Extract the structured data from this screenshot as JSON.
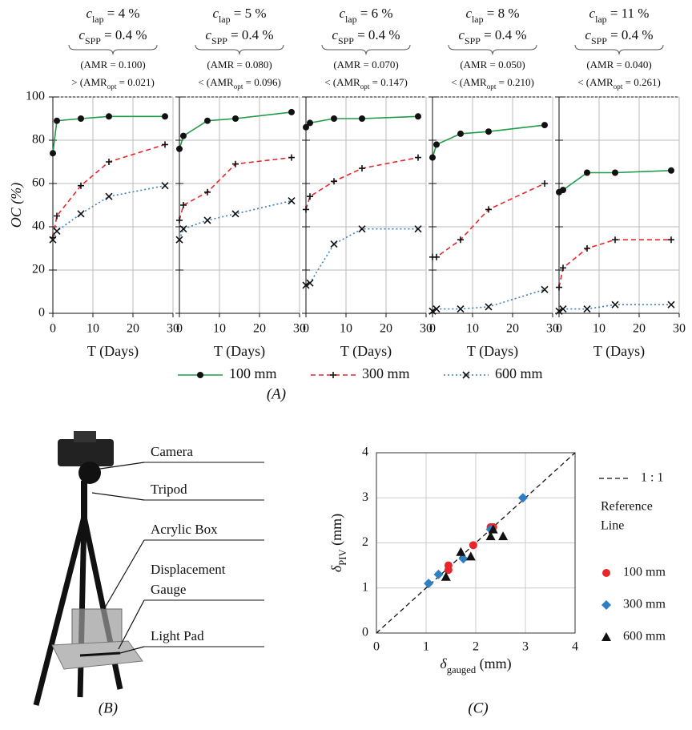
{
  "chart_data": [
    {
      "type": "line",
      "annotations": [
        [
          "c",
          "lap",
          " = 4 %"
        ],
        [
          "c",
          "SPP",
          " = 0.4 %"
        ],
        [
          "(AMR = 0.100)"
        ],
        [
          "> (AMR",
          "opt",
          " = 0.021)"
        ]
      ],
      "x": [
        0,
        1,
        7,
        14,
        28
      ],
      "xlabel": "T (Days)",
      "ylabel": "OC (%)",
      "xlim": [
        0,
        30
      ],
      "xticks": [
        0,
        10,
        20,
        30
      ],
      "ylim": [
        0,
        100
      ],
      "yticks": [
        0,
        20,
        40,
        60,
        80,
        100
      ],
      "grid": true,
      "series": [
        {
          "name": "100 mm",
          "color": "#1e9b48",
          "marker": "circle",
          "line_style": "solid",
          "values": [
            74,
            89,
            90,
            91,
            91
          ]
        },
        {
          "name": "300 mm",
          "color": "#e8262b",
          "marker": "plus",
          "line_style": "dashed",
          "values": [
            35,
            45,
            59,
            70,
            78
          ]
        },
        {
          "name": "600 mm",
          "color": "#3a7fc1",
          "marker": "cross",
          "line_style": "dotted",
          "values": [
            34,
            38,
            46,
            54,
            59
          ]
        }
      ]
    },
    {
      "type": "line",
      "annotations": [
        [
          "c",
          "lap",
          " = 5 %"
        ],
        [
          "c",
          "SPP",
          " = 0.4 %"
        ],
        [
          "(AMR = 0.080)"
        ],
        [
          "< (AMR",
          "opt",
          " = 0.096)"
        ]
      ],
      "x": [
        0,
        1,
        7,
        14,
        28
      ],
      "xlabel": "T (Days)",
      "xlim": [
        0,
        30
      ],
      "xticks": [
        0,
        10,
        20,
        30
      ],
      "ylim": [
        0,
        100
      ],
      "yticks": [
        0,
        20,
        40,
        60,
        80,
        100
      ],
      "grid": true,
      "series": [
        {
          "name": "100 mm",
          "color": "#1e9b48",
          "marker": "circle",
          "line_style": "solid",
          "values": [
            76,
            82,
            89,
            90,
            93
          ]
        },
        {
          "name": "300 mm",
          "color": "#e8262b",
          "marker": "plus",
          "line_style": "dashed",
          "values": [
            43,
            50,
            56,
            69,
            72
          ]
        },
        {
          "name": "600 mm",
          "color": "#3a7fc1",
          "marker": "cross",
          "line_style": "dotted",
          "values": [
            34,
            39,
            43,
            46,
            52
          ]
        }
      ]
    },
    {
      "type": "line",
      "annotations": [
        [
          "c",
          "lap",
          " = 6 %"
        ],
        [
          "c",
          "SPP",
          " = 0.4 %"
        ],
        [
          "(AMR = 0.070)"
        ],
        [
          "< (AMR",
          "opt",
          " = 0.147)"
        ]
      ],
      "x": [
        0,
        1,
        7,
        14,
        28
      ],
      "xlabel": "T (Days)",
      "xlim": [
        0,
        30
      ],
      "xticks": [
        0,
        10,
        20,
        30
      ],
      "ylim": [
        0,
        100
      ],
      "yticks": [
        0,
        20,
        40,
        60,
        80,
        100
      ],
      "grid": true,
      "series": [
        {
          "name": "100 mm",
          "color": "#1e9b48",
          "marker": "circle",
          "line_style": "solid",
          "values": [
            86,
            88,
            90,
            90,
            91
          ]
        },
        {
          "name": "300 mm",
          "color": "#e8262b",
          "marker": "plus",
          "line_style": "dashed",
          "values": [
            48,
            54,
            61,
            67,
            72
          ]
        },
        {
          "name": "600 mm",
          "color": "#3a7fc1",
          "marker": "cross",
          "line_style": "dotted",
          "values": [
            13,
            14,
            32,
            39,
            39
          ]
        }
      ]
    },
    {
      "type": "line",
      "annotations": [
        [
          "c",
          "lap",
          " = 8 %"
        ],
        [
          "c",
          "SPP",
          " = 0.4 %"
        ],
        [
          "(AMR = 0.050)"
        ],
        [
          "< (AMR",
          "opt",
          " = 0.210)"
        ]
      ],
      "x": [
        0,
        1,
        7,
        14,
        28
      ],
      "xlabel": "T (Days)",
      "xlim": [
        0,
        30
      ],
      "xticks": [
        0,
        10,
        20,
        30
      ],
      "ylim": [
        0,
        100
      ],
      "yticks": [
        0,
        20,
        40,
        60,
        80,
        100
      ],
      "grid": true,
      "series": [
        {
          "name": "100 mm",
          "color": "#1e9b48",
          "marker": "circle",
          "line_style": "solid",
          "values": [
            72,
            78,
            83,
            84,
            87
          ]
        },
        {
          "name": "300 mm",
          "color": "#e8262b",
          "marker": "plus",
          "line_style": "dashed",
          "values": [
            26,
            26,
            34,
            48,
            60
          ]
        },
        {
          "name": "600 mm",
          "color": "#3a7fc1",
          "marker": "cross",
          "line_style": "dotted",
          "values": [
            1,
            2,
            2,
            3,
            11
          ]
        }
      ]
    },
    {
      "type": "line",
      "annotations": [
        [
          "c",
          "lap",
          " = 11 %"
        ],
        [
          "c",
          "SPP",
          " = 0.4 %"
        ],
        [
          "(AMR = 0.040)"
        ],
        [
          "< (AMR",
          "opt",
          " = 0.261)"
        ]
      ],
      "x": [
        0,
        1,
        7,
        14,
        28
      ],
      "xlabel": "T (Days)",
      "xlim": [
        0,
        30
      ],
      "xticks": [
        0,
        10,
        20,
        30
      ],
      "ylim": [
        0,
        100
      ],
      "yticks": [
        0,
        20,
        40,
        60,
        80,
        100
      ],
      "grid": true,
      "series": [
        {
          "name": "100 mm",
          "color": "#1e9b48",
          "marker": "circle",
          "line_style": "solid",
          "values": [
            56,
            57,
            65,
            65,
            66
          ]
        },
        {
          "name": "300 mm",
          "color": "#e8262b",
          "marker": "plus",
          "line_style": "dashed",
          "values": [
            12,
            21,
            30,
            34,
            34
          ]
        },
        {
          "name": "600 mm",
          "color": "#3a7fc1",
          "marker": "cross",
          "line_style": "dotted",
          "values": [
            1,
            2,
            2,
            4,
            4
          ]
        }
      ]
    },
    {
      "type": "scatter",
      "xlabel": [
        "δ",
        "gauged",
        " (mm)"
      ],
      "ylabel": [
        "δ",
        "PIV",
        " (mm)"
      ],
      "xlim": [
        0,
        4
      ],
      "xticks": [
        0,
        1,
        2,
        3,
        4
      ],
      "ylim": [
        0,
        4
      ],
      "yticks": [
        0,
        1,
        2,
        3,
        4
      ],
      "grid": true,
      "reference_line": {
        "label": "1 : 1",
        "note": [
          "Reference",
          "Line"
        ]
      },
      "series": [
        {
          "name": "100 mm",
          "color": "#e8262b",
          "marker": "circle",
          "x": [
            1.45,
            1.45,
            1.95,
            2.3,
            2.35
          ],
          "values": [
            1.5,
            1.4,
            1.95,
            2.35,
            2.35
          ]
        },
        {
          "name": "300 mm",
          "color": "#2f7fc4",
          "marker": "diamond",
          "x": [
            1.05,
            1.25,
            1.75,
            2.3,
            2.95
          ],
          "values": [
            1.1,
            1.3,
            1.65,
            2.3,
            3.0
          ]
        },
        {
          "name": "600 mm",
          "color": "#111111",
          "marker": "triangle",
          "x": [
            1.4,
            1.7,
            1.9,
            2.3,
            2.35,
            2.55
          ],
          "values": [
            1.25,
            1.8,
            1.7,
            2.15,
            2.3,
            2.15
          ]
        }
      ]
    }
  ],
  "photo_panel": {
    "labels": [
      [
        "Camera"
      ],
      [
        "Tripod"
      ],
      [
        "Acrylic Box"
      ],
      [
        "Displacement",
        "Gauge"
      ],
      [
        "Light Pad"
      ]
    ]
  },
  "captions": [
    "(A)",
    "(B)",
    "(C)"
  ]
}
